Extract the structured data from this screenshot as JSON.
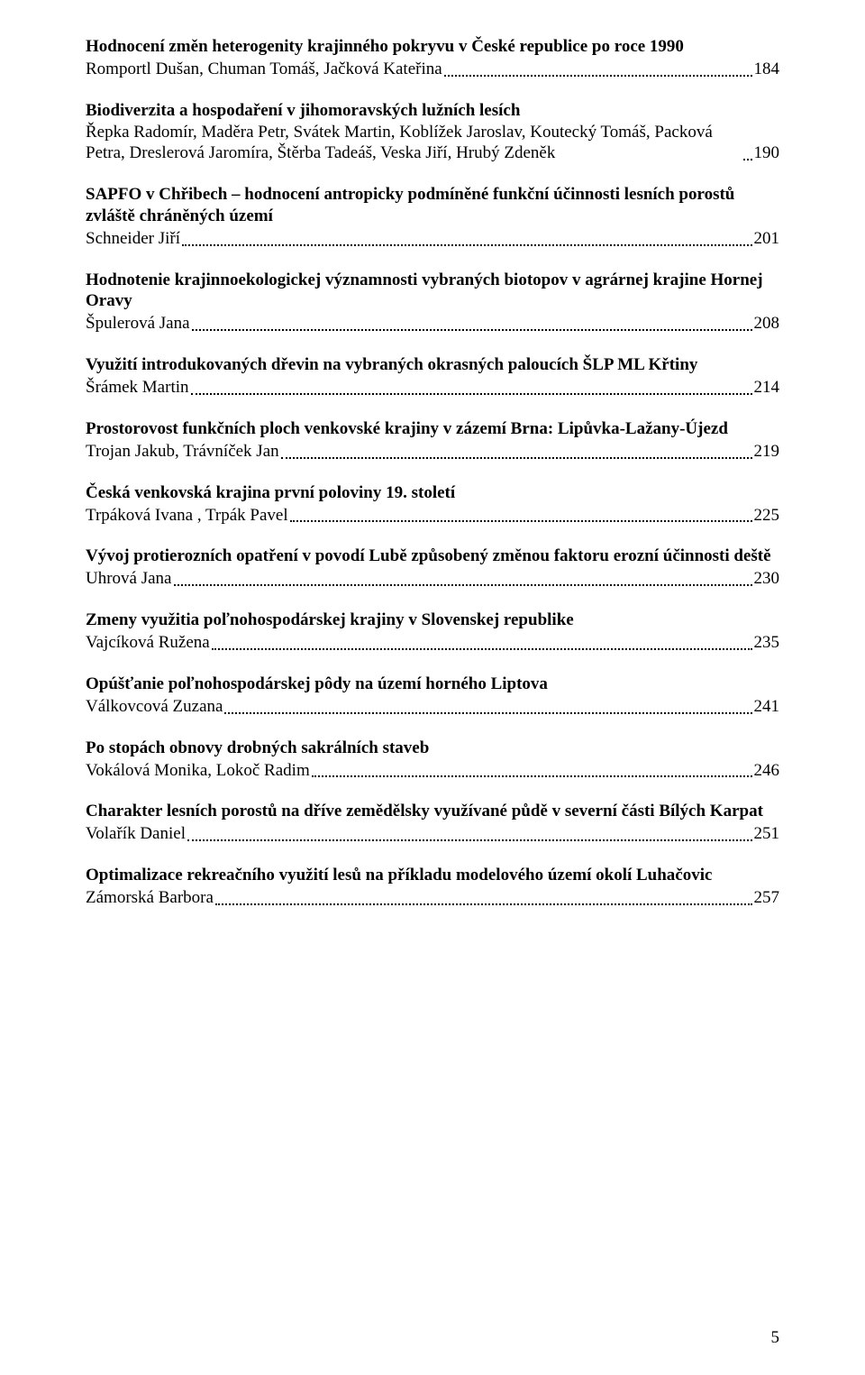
{
  "entries": [
    {
      "title": "Hodnocení změn heterogenity krajinného pokryvu v České republice po roce 1990",
      "authors": "Romportl Dušan, Chuman Tomáš, Jačková Kateřina",
      "page": "184"
    },
    {
      "title": "Biodiverzita a hospodaření v jihomoravských lužních lesích",
      "authors": "Řepka Radomír, Maděra Petr, Svátek Martin, Koblížek Jaroslav, Koutecký Tomáš, Packová Petra, Dreslerová Jaromíra, Štěrba Tadeáš, Veska Jiří, Hrubý Zdeněk",
      "page": "190"
    },
    {
      "title": "SAPFO v Chřibech – hodnocení antropicky podmíněné funkční účinnosti lesních porostů zvláště chráněných území",
      "authors": "Schneider Jiří",
      "page": "201"
    },
    {
      "title": "Hodnotenie krajinnoekologickej významnosti vybraných biotopov v agrárnej krajine Hornej Oravy",
      "authors": "Špulerová Jana",
      "page": "208"
    },
    {
      "title": "Využití introdukovaných dřevin na vybraných okrasných paloucích ŠLP ML Křtiny",
      "authors": "Šrámek Martin",
      "page": "214"
    },
    {
      "title": "Prostorovost funkčních ploch venkovské krajiny v zázemí Brna: Lipůvka-Lažany-Újezd",
      "authors": "Trojan Jakub, Trávníček Jan",
      "page": "219"
    },
    {
      "title": "Česká venkovská krajina první poloviny 19. století",
      "authors": "Trpáková Ivana , Trpák Pavel",
      "page": "225"
    },
    {
      "title": "Vývoj protierozních opatření v povodí Lubě způsobený změnou faktoru erozní účinnosti deště",
      "authors": "Uhrová Jana",
      "page": "230"
    },
    {
      "title": "Zmeny využitia poľnohospodárskej krajiny v Slovenskej republike",
      "authors": "Vajcíková Ružena",
      "page": "235"
    },
    {
      "title": "Opúšťanie poľnohospodárskej pôdy na území horného Liptova",
      "authors": "Válkovcová Zuzana",
      "page": "241"
    },
    {
      "title": "Po stopách obnovy drobných sakrálních staveb",
      "authors": "Vokálová Monika, Lokoč Radim",
      "page": "246"
    },
    {
      "title": "Charakter lesních porostů na dříve zemědělsky využívané půdě v severní části Bílých Karpat",
      "authors": "Volařík Daniel",
      "page": "251"
    },
    {
      "title": "Optimalizace rekreačního využití lesů na příkladu modelového území okolí Luhačovic",
      "authors": "Zámorská Barbora",
      "page": "257"
    }
  ],
  "footer_page_number": "5"
}
